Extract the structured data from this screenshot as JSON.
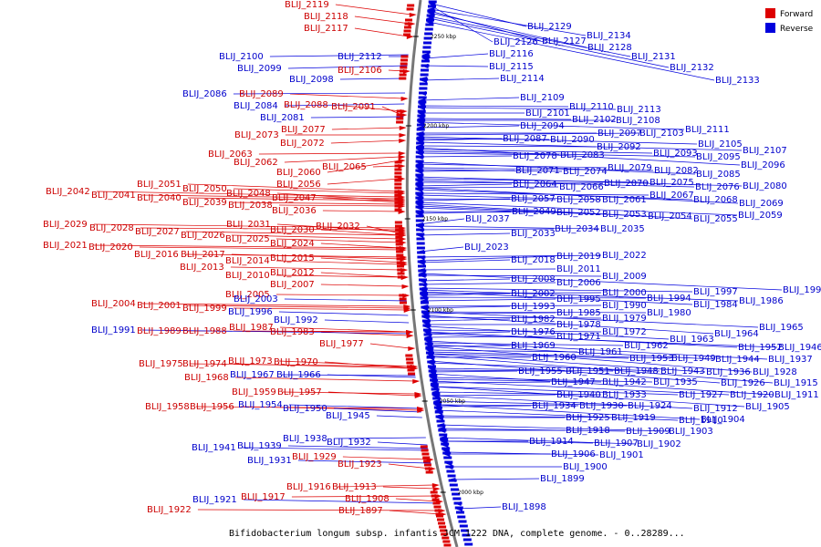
{
  "colors": {
    "forward": "#dd0000",
    "reverse": "#0000dd",
    "backbone": "#888888"
  },
  "legend": [
    {
      "label": "Forward",
      "color": "#dd0000"
    },
    {
      "label": "Reverse",
      "color": "#0000dd"
    }
  ],
  "caption": "Bifidobacterium longum subsp. infantis JCM 1222 DNA, complete genome. - 0..28289...",
  "ticks": [
    "2250 kbp",
    "2200 kbp",
    "2150 kbp",
    "2100 kbp",
    "2050 kbp",
    "2000 kbp"
  ],
  "forward_labels": [
    "BLIJ_2119",
    "BLIJ_2118",
    "BLIJ_2117",
    "BLIJ_2106",
    "BLIJ_2089",
    "BLIJ_2088",
    "BLIJ_2091",
    "BLIJ_2077",
    "BLIJ_2073",
    "BLIJ_2072",
    "BLIJ_2063",
    "BLIJ_2062",
    "BLIJ_2060",
    "BLIJ_2065",
    "BLIJ_2056",
    "BLIJ_2051",
    "BLIJ_2050",
    "BLIJ_2042",
    "BLIJ_2041",
    "BLIJ_2040",
    "BLIJ_2039",
    "BLIJ_2048",
    "BLIJ_2038",
    "BLIJ_2047",
    "BLIJ_2036",
    "BLIJ_2029",
    "BLIJ_2028",
    "BLIJ_2027",
    "BLIJ_2026",
    "BLIJ_2031",
    "BLIJ_2025",
    "BLIJ_2030",
    "BLIJ_2032",
    "BLIJ_2024",
    "BLIJ_2021",
    "BLIJ_2020",
    "BLIJ_2016",
    "BLIJ_2017",
    "BLIJ_2014",
    "BLIJ_2015",
    "BLIJ_2013",
    "BLIJ_2010",
    "BLIJ_2012",
    "BLIJ_2007",
    "BLIJ_2005",
    "BLIJ_2004",
    "BLIJ_2001",
    "BLIJ_1999",
    "BLIJ_1989",
    "BLIJ_1988",
    "BLIJ_1987",
    "BLIJ_1983",
    "BLIJ_1977",
    "BLIJ_1975",
    "BLIJ_1974",
    "BLIJ_1973",
    "BLIJ_1970",
    "BLIJ_1968",
    "BLIJ_1959",
    "BLIJ_1957",
    "BLIJ_1958",
    "BLIJ_1956",
    "BLIJ_1929",
    "BLIJ_1923",
    "BLIJ_1916",
    "BLIJ_1913",
    "BLIJ_1917",
    "BLIJ_1908",
    "BLIJ_1922",
    "BLIJ_1897"
  ],
  "reverse_labels": [
    "BLIJ_2129",
    "BLIJ_2134",
    "BLIJ_2126",
    "BLIJ_2127",
    "BLIJ_2128",
    "BLIJ_2100",
    "BLIJ_2112",
    "BLIJ_2116",
    "BLIJ_2131",
    "BLIJ_2099",
    "BLIJ_2115",
    "BLIJ_2132",
    "BLIJ_2098",
    "BLIJ_2114",
    "BLIJ_2133",
    "BLIJ_2086",
    "BLIJ_2109",
    "BLIJ_2084",
    "BLIJ_2110",
    "BLIJ_2113",
    "BLIJ_2101",
    "BLIJ_2081",
    "BLIJ_2102",
    "BLIJ_2108",
    "BLIJ_2094",
    "BLIJ_2111",
    "BLIJ_2097",
    "BLIJ_2103",
    "BLIJ_2087",
    "BLIJ_2090",
    "BLIJ_2105",
    "BLIJ_2092",
    "BLIJ_2107",
    "BLIJ_2078",
    "BLIJ_2083",
    "BLIJ_2093",
    "BLIJ_2095",
    "BLIJ_2096",
    "BLIJ_2079",
    "BLIJ_2071",
    "BLIJ_2074",
    "BLIJ_2082",
    "BLIJ_2085",
    "BLIJ_2070",
    "BLIJ_2075",
    "BLIJ_2064",
    "BLIJ_2066",
    "BLIJ_2076",
    "BLIJ_2080",
    "BLIJ_2067",
    "BLIJ_2057",
    "BLIJ_2058",
    "BLIJ_2061",
    "BLIJ_2068",
    "BLIJ_2069",
    "BLIJ_2049",
    "BLIJ_2052",
    "BLIJ_2053",
    "BLIJ_2054",
    "BLIJ_2055",
    "BLIJ_2059",
    "BLIJ_2037",
    "BLIJ_2033",
    "BLIJ_2034",
    "BLIJ_2035",
    "BLIJ_2023",
    "BLIJ_2018",
    "BLIJ_2019",
    "BLIJ_2022",
    "BLIJ_2011",
    "BLIJ_2008",
    "BLIJ_2009",
    "BLIJ_2006",
    "BLIJ_1998",
    "BLIJ_2002",
    "BLIJ_2000",
    "BLIJ_1997",
    "BLIJ_1994",
    "BLIJ_2003",
    "BLIJ_1995",
    "BLIJ_1993",
    "BLIJ_1990",
    "BLIJ_1984",
    "BLIJ_1986",
    "BLIJ_1996",
    "BLIJ_1985",
    "BLIJ_1980",
    "BLIJ_1992",
    "BLIJ_1982",
    "BLIJ_1978",
    "BLIJ_1979",
    "BLIJ_1991",
    "BLIJ_1976",
    "BLIJ_1972",
    "BLIJ_1965",
    "BLIJ_1971",
    "BLIJ_1964",
    "BLIJ_1969",
    "BLIJ_1963",
    "BLIJ_1962",
    "BLIJ_1961",
    "BLIJ_1952",
    "BLIJ_1946",
    "BLIJ_1960",
    "BLIJ_1953",
    "BLIJ_1949",
    "BLIJ_1944",
    "BLIJ_1937",
    "BLIJ_1955",
    "BLIJ_1951",
    "BLIJ_1948",
    "BLIJ_1943",
    "BLIJ_1936",
    "BLIJ_1928",
    "BLIJ_1967",
    "BLIJ_1966",
    "BLIJ_1947",
    "BLIJ_1942",
    "BLIJ_1935",
    "BLIJ_1926",
    "BLIJ_1915",
    "BLIJ_1940",
    "BLIJ_1933",
    "BLIJ_1927",
    "BLIJ_1920",
    "BLIJ_1911",
    "BLIJ_1954",
    "BLIJ_1934",
    "BLIJ_1930",
    "BLIJ_1924",
    "BLIJ_1912",
    "BLIJ_1905",
    "BLIJ_1950",
    "BLIJ_1925",
    "BLIJ_1919",
    "BLIJ_1910",
    "BLIJ_1904",
    "BLIJ_1945",
    "BLIJ_1918",
    "BLIJ_1909",
    "BLIJ_1903",
    "BLIJ_1938",
    "BLIJ_1914",
    "BLIJ_1907",
    "BLIJ_1902",
    "BLIJ_1941",
    "BLIJ_1939",
    "BLIJ_1932",
    "BLIJ_1906",
    "BLIJ_1901",
    "BLIJ_1931",
    "BLIJ_1900",
    "BLIJ_1899",
    "BLIJ_1921",
    "BLIJ_1898"
  ]
}
